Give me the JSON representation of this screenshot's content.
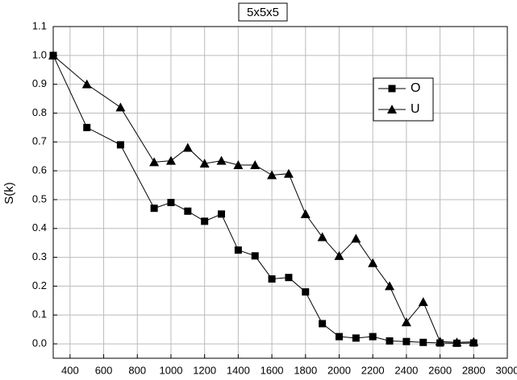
{
  "chart_data": {
    "type": "line",
    "title": "5x5x5",
    "y_label": "S(k)",
    "x": [
      300,
      500,
      700,
      900,
      1000,
      1100,
      1200,
      1300,
      1400,
      1500,
      1600,
      1700,
      1800,
      1900,
      2000,
      2100,
      2200,
      2300,
      2400,
      2500,
      2600,
      2700,
      2800
    ],
    "series": [
      {
        "name": "O",
        "color": "#000000",
        "marker": "square",
        "values": [
          1.0,
          0.75,
          0.69,
          0.47,
          0.49,
          0.46,
          0.425,
          0.45,
          0.325,
          0.305,
          0.225,
          0.23,
          0.18,
          0.07,
          0.025,
          0.02,
          0.025,
          0.01,
          0.008,
          0.005,
          0.003,
          0.002,
          0.003
        ]
      },
      {
        "name": "U",
        "color": "#000000",
        "marker": "triangle",
        "values": [
          1.0,
          0.9,
          0.82,
          0.63,
          0.635,
          0.68,
          0.625,
          0.635,
          0.62,
          0.62,
          0.585,
          0.59,
          0.45,
          0.37,
          0.305,
          0.365,
          0.28,
          0.2,
          0.075,
          0.145,
          0.008,
          0.005,
          0.007
        ]
      }
    ],
    "xlim": [
      300,
      3000
    ],
    "xticks": [
      400,
      600,
      800,
      1000,
      1200,
      1400,
      1600,
      1800,
      2000,
      2200,
      2400,
      2600,
      2800,
      3000
    ],
    "ylim": [
      -0.05,
      1.1
    ],
    "yticks": [
      {
        "value": 0,
        "label": "0.0"
      },
      0.1,
      0.2,
      0.3,
      0.4,
      0.5,
      0.6,
      0.7,
      0.8,
      0.9,
      {
        "value": 1,
        "label": "1.0"
      },
      1.1
    ],
    "grid": true,
    "legend": "upper-right"
  }
}
